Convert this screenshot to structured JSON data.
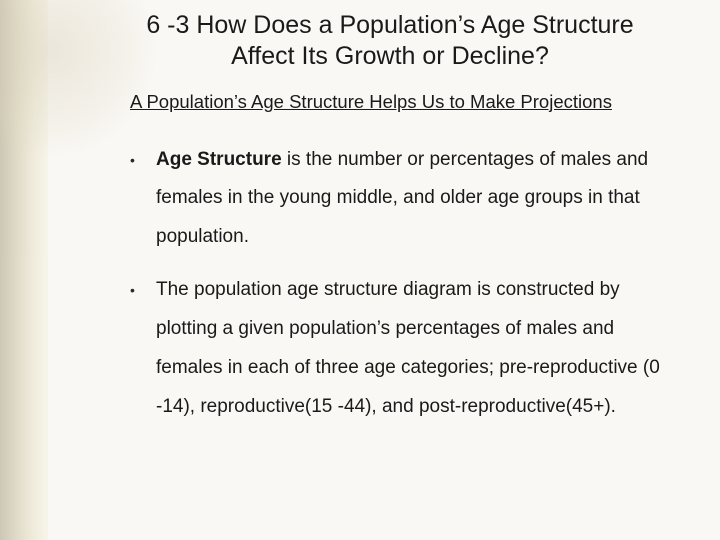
{
  "title": "6 -3 How Does a Population’s Age Structure Affect Its Growth or Decline?",
  "subtitle": "A Population’s Age Structure Helps Us to Make Projections",
  "bullets": [
    {
      "bold": "Age Structure",
      "rest": " is the number or percentages of males and females in the young  middle, and older age groups in that population."
    },
    {
      "bold": "",
      "rest": "The population age structure diagram is constructed by plotting a given population’s percentages of males and females in each of three age categories;  pre-reproductive (0 -14), reproductive(15 -44), and post-reproductive(45+)."
    }
  ],
  "colors": {
    "background": "#faf8f5",
    "accent_band": "#d0c8a8",
    "text": "#1a1a1a"
  },
  "typography": {
    "title_fontsize": 25,
    "subtitle_fontsize": 18.5,
    "body_fontsize": 19,
    "font_family": "Arial"
  }
}
